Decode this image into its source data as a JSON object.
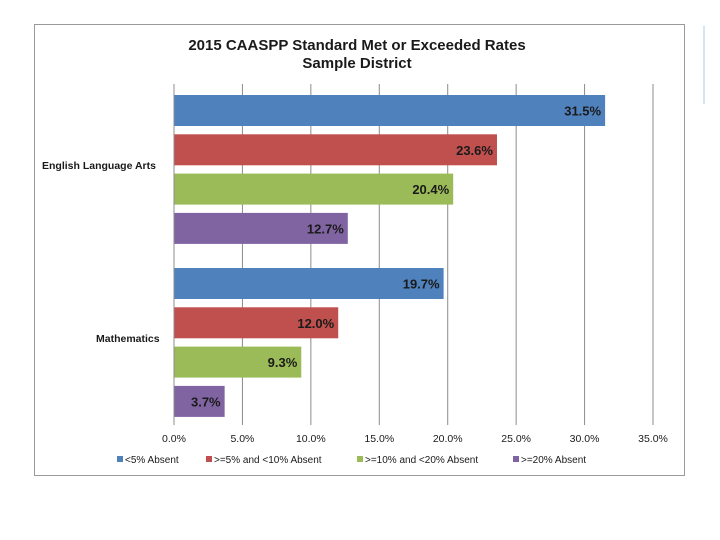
{
  "chart_data": {
    "type": "bar",
    "orientation": "horizontal",
    "title": "2015 CAASPP Standard Met or Exceeded Rates",
    "subtitle": "Sample District",
    "categories": [
      "English Language Arts",
      "Mathematics"
    ],
    "series": [
      {
        "name": "<5% Absent",
        "color": "#4f81bd",
        "values": [
          31.5,
          19.7
        ],
        "labels": [
          "31.5%",
          "19.7%"
        ]
      },
      {
        "name": ">=5% and <10% Absent",
        "color": "#c0504d",
        "values": [
          23.6,
          12.0
        ],
        "labels": [
          "23.6%",
          "12.0%"
        ]
      },
      {
        "name": ">=10% and <20% Absent",
        "color": "#9bbb59",
        "values": [
          20.4,
          9.3
        ],
        "labels": [
          "20.4%",
          "9.3%"
        ]
      },
      {
        "name": ">=20% Absent",
        "color": "#8064a2",
        "values": [
          12.7,
          3.7
        ],
        "labels": [
          "12.7%",
          "3.7%"
        ]
      }
    ],
    "xlim": [
      0,
      35
    ],
    "x_ticks": [
      0,
      5,
      10,
      15,
      20,
      25,
      30,
      35
    ],
    "x_tick_labels": [
      "0.0%",
      "5.0%",
      "10.0%",
      "15.0%",
      "20.0%",
      "25.0%",
      "30.0%",
      "35.0%"
    ],
    "grid": "vertical",
    "legend_position": "bottom"
  }
}
